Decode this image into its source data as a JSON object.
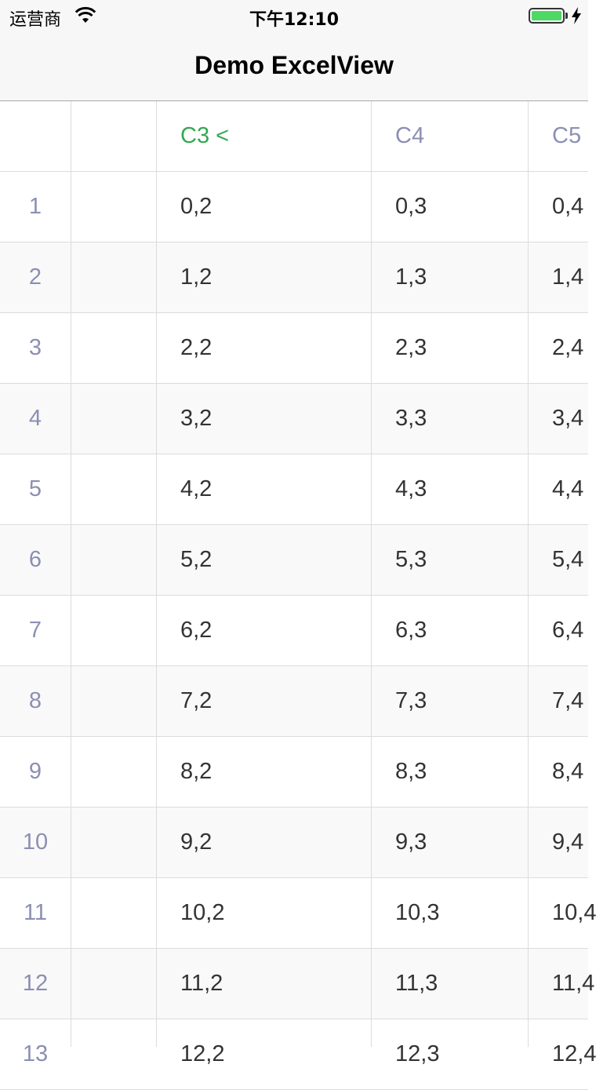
{
  "status_bar": {
    "carrier": "运营商",
    "time": "下午12:10",
    "battery_level": 1.0,
    "wifi_icon": "wifi-icon",
    "battery_icon": "battery-icon",
    "charging_icon": "bolt-icon"
  },
  "nav": {
    "title": "Demo ExcelView"
  },
  "sheet": {
    "header": {
      "c3": "C3 <",
      "c4": "C4",
      "c5": "C5"
    },
    "rows": [
      {
        "idx": "1",
        "c3": "0,2",
        "c4": "0,3",
        "c5": "0,4"
      },
      {
        "idx": "2",
        "c3": "1,2",
        "c4": "1,3",
        "c5": "1,4"
      },
      {
        "idx": "3",
        "c3": "2,2",
        "c4": "2,3",
        "c5": "2,4"
      },
      {
        "idx": "4",
        "c3": "3,2",
        "c4": "3,3",
        "c5": "3,4"
      },
      {
        "idx": "5",
        "c3": "4,2",
        "c4": "4,3",
        "c5": "4,4"
      },
      {
        "idx": "6",
        "c3": "5,2",
        "c4": "5,3",
        "c5": "5,4"
      },
      {
        "idx": "7",
        "c3": "6,2",
        "c4": "6,3",
        "c5": "6,4"
      },
      {
        "idx": "8",
        "c3": "7,2",
        "c4": "7,3",
        "c5": "7,4"
      },
      {
        "idx": "9",
        "c3": "8,2",
        "c4": "8,3",
        "c5": "8,4"
      },
      {
        "idx": "10",
        "c3": "9,2",
        "c4": "9,3",
        "c5": "9,4"
      },
      {
        "idx": "11",
        "c3": "10,2",
        "c4": "10,3",
        "c5": "10,4"
      },
      {
        "idx": "12",
        "c3": "11,2",
        "c4": "11,3",
        "c5": "11,4"
      },
      {
        "idx": "13",
        "c3": "12,2",
        "c4": "12,3",
        "c5": "12,4"
      }
    ],
    "colors": {
      "index_text": "#8c8fb3",
      "sorted_header": "#34a853",
      "grid": "#dcdcdc",
      "alt_row": "#f9f9f9"
    }
  }
}
